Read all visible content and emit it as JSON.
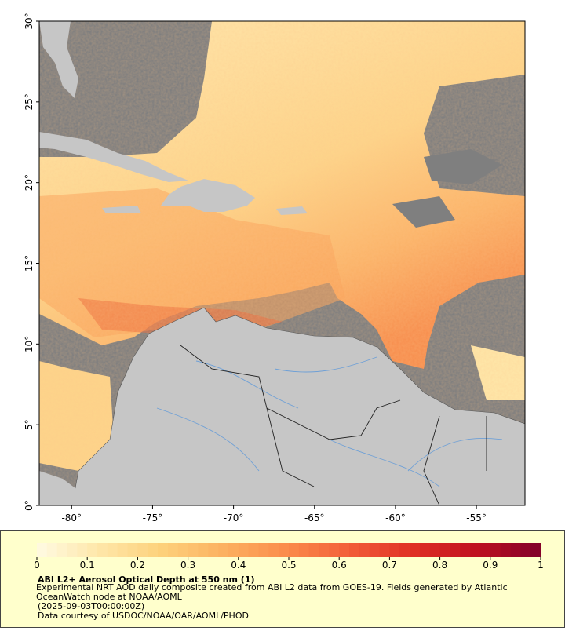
{
  "map": {
    "title": "ABI L2+ Aerosol Optical Depth at 550 nm (1)",
    "description": "Experimental NRT AOD daily composite created from ABI L2 data from GOES-19. Fields generated by Atlantic OceanWatch node at NOAA/AOML",
    "timestamp": "(2025-09-03T00:00:00Z)",
    "credit": "Data courtesy of USDOC/NOAA/OAR/AOML/PHOD",
    "xlim": [
      -82,
      -52
    ],
    "ylim": [
      0,
      30
    ],
    "xticks": [
      {
        "value": -80,
        "label": "-80°"
      },
      {
        "value": -75,
        "label": "-75°"
      },
      {
        "value": -70,
        "label": "-70°"
      },
      {
        "value": -65,
        "label": "-65°"
      },
      {
        "value": -60,
        "label": "-60°"
      },
      {
        "value": -55,
        "label": "-55°"
      }
    ],
    "yticks": [
      {
        "value": 0,
        "label": "0°"
      },
      {
        "value": 5,
        "label": "5°"
      },
      {
        "value": 10,
        "label": "10°"
      },
      {
        "value": 15,
        "label": "15°"
      },
      {
        "value": 20,
        "label": "20°"
      },
      {
        "value": 25,
        "label": "25°"
      },
      {
        "value": 30,
        "label": "30°"
      }
    ],
    "colorbar": {
      "lim": [
        0,
        1
      ],
      "ticks": [
        0,
        0.1,
        0.2,
        0.3,
        0.4,
        0.5,
        0.6,
        0.7,
        0.8,
        0.9,
        1
      ],
      "colors": [
        "#fffbe3",
        "#fee6a8",
        "#fdd07a",
        "#fcb060",
        "#fb8a4a",
        "#f25c38",
        "#df2e24",
        "#bf1020",
        "#80002a"
      ]
    }
  }
}
